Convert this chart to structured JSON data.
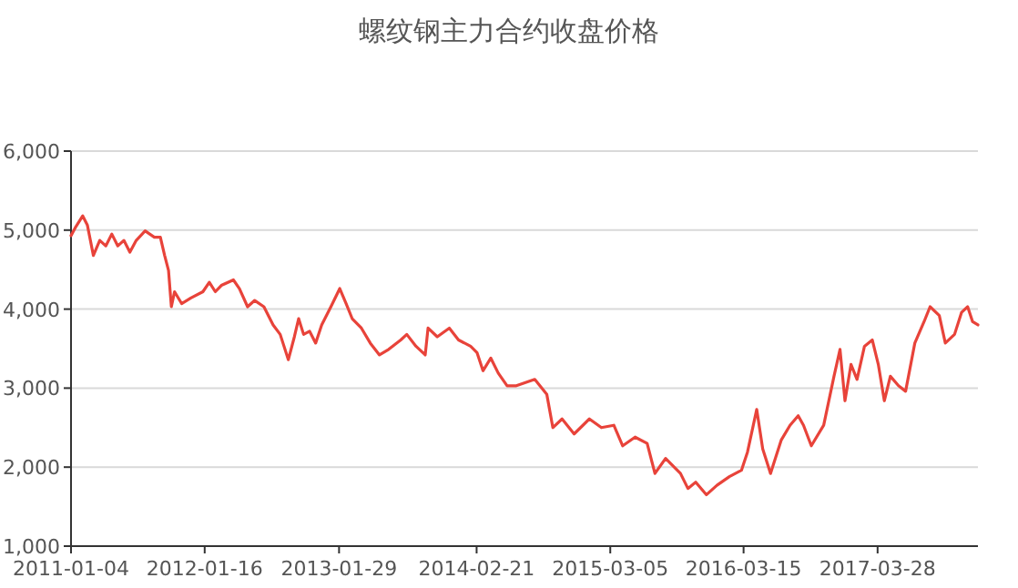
{
  "chart_data": {
    "type": "line",
    "title": "螺纹钢主力合约收盘价格",
    "x": [
      "2011-01-04",
      "2011-01-16",
      "2011-02-06",
      "2011-02-19",
      "2011-03-08",
      "2011-03-26",
      "2011-04-12",
      "2011-04-29",
      "2011-05-16",
      "2011-06-02",
      "2011-06-19",
      "2011-07-07",
      "2011-08-01",
      "2011-08-27",
      "2011-09-13",
      "2011-09-25",
      "2011-10-06",
      "2011-10-14",
      "2011-10-23",
      "2011-11-12",
      "2011-12-08",
      "2012-01-11",
      "2012-01-29",
      "2012-02-15",
      "2012-03-03",
      "2012-04-06",
      "2012-04-23",
      "2012-05-16",
      "2012-06-05",
      "2012-07-01",
      "2012-07-27",
      "2012-08-16",
      "2012-09-08",
      "2012-09-25",
      "2012-10-07",
      "2012-10-21",
      "2012-11-07",
      "2012-11-24",
      "2012-12-11",
      "2013-01-06",
      "2013-01-31",
      "2013-02-18",
      "2013-03-07",
      "2013-04-02",
      "2013-04-27",
      "2013-05-23",
      "2013-06-18",
      "2013-07-22",
      "2013-08-08",
      "2013-09-03",
      "2013-09-29",
      "2013-10-07",
      "2013-11-02",
      "2013-12-06",
      "2014-01-01",
      "2014-02-04",
      "2014-02-22",
      "2014-03-11",
      "2014-04-02",
      "2014-04-23",
      "2014-05-18",
      "2014-06-13",
      "2014-08-04",
      "2014-09-07",
      "2014-09-24",
      "2014-10-20",
      "2014-11-23",
      "2015-01-05",
      "2015-02-08",
      "2015-03-15",
      "2015-04-09",
      "2015-05-14",
      "2015-06-17",
      "2015-07-09",
      "2015-08-08",
      "2015-09-19",
      "2015-10-10",
      "2015-11-01",
      "2015-12-01",
      "2015-12-31",
      "2016-02-04",
      "2016-03-09",
      "2016-03-26",
      "2016-04-21",
      "2016-05-08",
      "2016-05-30",
      "2016-06-29",
      "2016-07-24",
      "2016-08-16",
      "2016-08-31",
      "2016-09-22",
      "2016-10-27",
      "2016-11-25",
      "2016-12-12",
      "2016-12-26",
      "2017-01-12",
      "2017-01-29",
      "2017-02-19",
      "2017-03-13",
      "2017-03-30",
      "2017-04-16",
      "2017-05-03",
      "2017-05-26",
      "2017-06-15",
      "2017-07-11",
      "2017-08-06",
      "2017-08-23",
      "2017-09-18",
      "2017-10-05",
      "2017-10-31",
      "2017-11-20",
      "2017-12-07",
      "2017-12-21",
      "2018-01-05"
    ],
    "series": [
      {
        "color": "#e8433a",
        "values": [
          4930,
          5030,
          5180,
          5065,
          4680,
          4870,
          4800,
          4950,
          4800,
          4870,
          4720,
          4870,
          4990,
          4910,
          4910,
          4680,
          4490,
          4030,
          4220,
          4070,
          4140,
          4220,
          4340,
          4220,
          4300,
          4370,
          4260,
          4030,
          4110,
          4030,
          3800,
          3680,
          3360,
          3650,
          3880,
          3680,
          3720,
          3570,
          3800,
          4030,
          4260,
          4070,
          3880,
          3760,
          3570,
          3420,
          3490,
          3610,
          3680,
          3530,
          3420,
          3760,
          3650,
          3760,
          3610,
          3530,
          3450,
          3220,
          3380,
          3190,
          3030,
          3030,
          3110,
          2920,
          2500,
          2610,
          2420,
          2610,
          2500,
          2530,
          2270,
          2380,
          2300,
          1920,
          2110,
          1920,
          1730,
          1810,
          1650,
          1770,
          1880,
          1960,
          2190,
          2730,
          2230,
          1920,
          2340,
          2530,
          2650,
          2530,
          2270,
          2530,
          3150,
          3490,
          2840,
          3300,
          3110,
          3530,
          3610,
          3300,
          2840,
          3150,
          3030,
          2960,
          3570,
          3840,
          4030,
          3920,
          3570,
          3680,
          3960,
          4030,
          3840,
          3800
        ]
      }
    ],
    "xlim": [
      "2011-01-04",
      "2018-01-05"
    ],
    "xticks": [
      "2011-01-04",
      "2012-01-16",
      "2013-01-29",
      "2014-02-21",
      "2015-03-05",
      "2016-03-15",
      "2017-03-28"
    ],
    "ylim": [
      1000,
      6000
    ],
    "yticks": [
      {
        "value": 1000,
        "label": "1,000"
      },
      {
        "value": 2000,
        "label": "2,000"
      },
      {
        "value": 3000,
        "label": "3,000"
      },
      {
        "value": 4000,
        "label": "4,000"
      },
      {
        "value": 5000,
        "label": "5,000"
      },
      {
        "value": 6000,
        "label": "6,000"
      }
    ],
    "grid": "y",
    "line_style": "solid"
  }
}
